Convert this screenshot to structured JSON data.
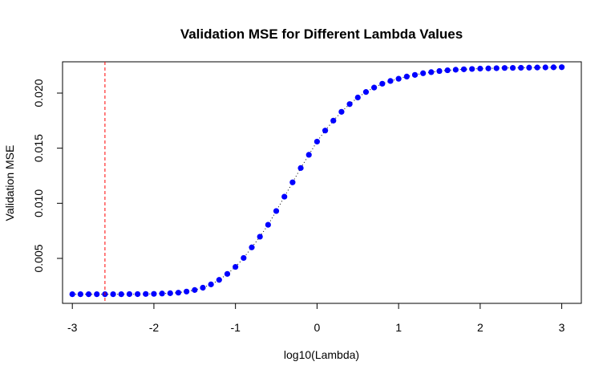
{
  "chart_data": {
    "type": "scatter",
    "title": "Validation MSE for Different Lambda Values",
    "xlabel": "log10(Lambda)",
    "ylabel": "Validation MSE",
    "xlim": [
      -3.12,
      3.24
    ],
    "ylim": [
      0.00092,
      0.02284
    ],
    "x_ticks": [
      -3,
      -2,
      -1,
      0,
      1,
      2,
      3
    ],
    "x_tick_labels": [
      "-3",
      "-2",
      "-1",
      "0",
      "1",
      "2",
      "3"
    ],
    "y_ticks": [
      0.005,
      0.01,
      0.015,
      0.02
    ],
    "y_tick_labels": [
      "0.005",
      "0.010",
      "0.015",
      "0.020"
    ],
    "grid": false,
    "vline": {
      "x": -2.6,
      "color": "#ff0000",
      "style": "dashed"
    },
    "point_color": "#0000ff",
    "x": [
      -3.0,
      -2.9,
      -2.8,
      -2.7,
      -2.6,
      -2.5,
      -2.4,
      -2.3,
      -2.2,
      -2.1,
      -2.0,
      -1.9,
      -1.8,
      -1.7,
      -1.6,
      -1.5,
      -1.4,
      -1.3,
      -1.2,
      -1.1,
      -1.0,
      -0.9,
      -0.8,
      -0.7,
      -0.6,
      -0.5,
      -0.4,
      -0.3,
      -0.2,
      -0.1,
      0.0,
      0.1,
      0.2,
      0.3,
      0.4,
      0.5,
      0.6,
      0.7,
      0.8,
      0.9,
      1.0,
      1.1,
      1.2,
      1.3,
      1.4,
      1.5,
      1.6,
      1.7,
      1.8,
      1.9,
      2.0,
      2.1,
      2.2,
      2.3,
      2.4,
      2.5,
      2.6,
      2.7,
      2.8,
      2.9,
      3.0
    ],
    "y": [
      0.00175,
      0.00175,
      0.00175,
      0.00175,
      0.00175,
      0.00175,
      0.00175,
      0.00176,
      0.00176,
      0.00177,
      0.00178,
      0.00181,
      0.00184,
      0.00189,
      0.00199,
      0.00213,
      0.00234,
      0.00264,
      0.00305,
      0.00359,
      0.00423,
      0.00504,
      0.006,
      0.00697,
      0.00805,
      0.0093,
      0.0106,
      0.0119,
      0.0132,
      0.0144,
      0.0156,
      0.0166,
      0.0175,
      0.0183,
      0.019,
      0.0196,
      0.0201,
      0.0205,
      0.02085,
      0.0211,
      0.0213,
      0.0215,
      0.02165,
      0.0218,
      0.0219,
      0.022,
      0.02207,
      0.02212,
      0.02216,
      0.02219,
      0.02222,
      0.02224,
      0.02226,
      0.02228,
      0.02229,
      0.0223,
      0.02231,
      0.02232,
      0.02233,
      0.02234,
      0.02235
    ]
  }
}
